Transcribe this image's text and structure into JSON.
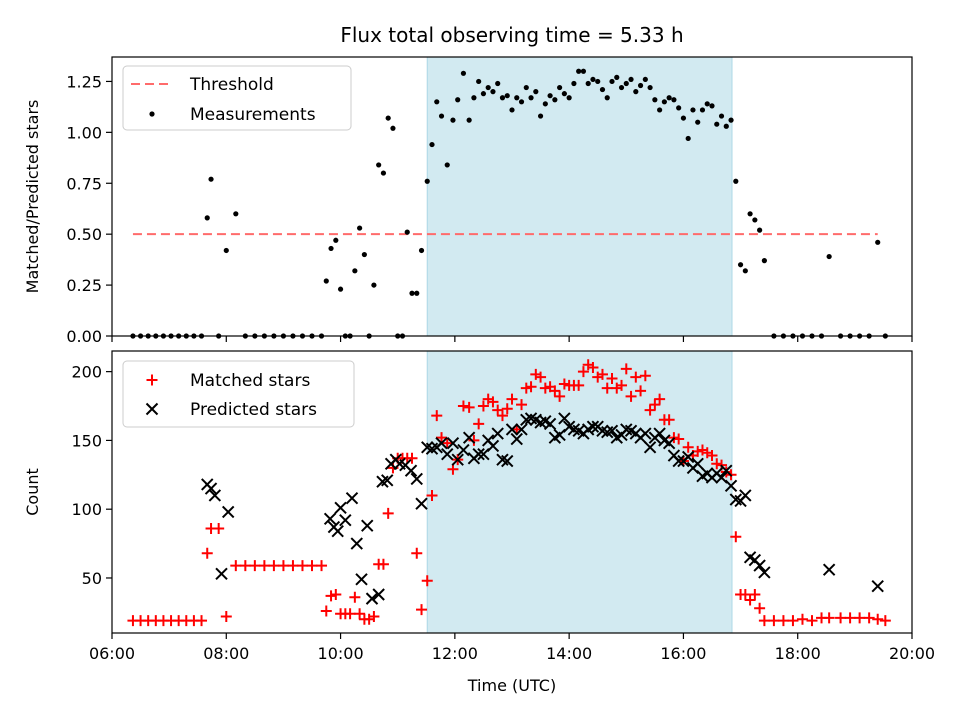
{
  "title": "Flux total observing time = 5.33 h",
  "colors": {
    "shade": "#add8e6",
    "threshold": "#ff6b6b",
    "measurements": "#000000",
    "matched": "#ff0000",
    "predicted": "#000000"
  },
  "chart_data": [
    {
      "type": "scatter",
      "title": "Flux total observing time = 5.33 h",
      "xlabel": "",
      "ylabel": "Matched/Predicted stars",
      "xlim": [
        "06:00",
        "20:00"
      ],
      "ylim": [
        0,
        1.37
      ],
      "yticks": [
        "0.00",
        "0.25",
        "0.50",
        "0.75",
        "1.00",
        "1.25"
      ],
      "grid": false,
      "legend_position": "upper-left",
      "shaded_interval": [
        "11:31",
        "16:51"
      ],
      "series": [
        {
          "name": "Threshold",
          "kind": "dashed-line",
          "x": [
            "06:22",
            "19:24"
          ],
          "y": [
            0.5,
            0.5
          ]
        },
        {
          "name": "Measurements",
          "kind": "dots",
          "x": [
            "06:22",
            "06:30",
            "06:38",
            "06:46",
            "06:54",
            "07:02",
            "07:10",
            "07:18",
            "07:26",
            "07:34",
            "07:40",
            "07:44",
            "07:52",
            "08:00",
            "08:10",
            "08:20",
            "08:30",
            "08:40",
            "08:50",
            "09:00",
            "09:10",
            "09:20",
            "09:30",
            "09:40",
            "09:45",
            "09:50",
            "09:55",
            "10:00",
            "10:05",
            "10:10",
            "10:15",
            "10:20",
            "10:25",
            "10:30",
            "10:35",
            "10:40",
            "10:45",
            "10:50",
            "10:55",
            "11:00",
            "11:05",
            "11:10",
            "11:15",
            "11:20",
            "11:25",
            "11:31",
            "11:36",
            "11:41",
            "11:46",
            "11:52",
            "11:58",
            "12:03",
            "12:09",
            "12:15",
            "12:20",
            "12:25",
            "12:30",
            "12:35",
            "12:40",
            "12:45",
            "12:50",
            "12:55",
            "13:00",
            "13:05",
            "13:10",
            "13:15",
            "13:20",
            "13:25",
            "13:30",
            "13:35",
            "13:40",
            "13:45",
            "13:50",
            "13:55",
            "14:00",
            "14:05",
            "14:10",
            "14:15",
            "14:20",
            "14:25",
            "14:30",
            "14:35",
            "14:40",
            "14:45",
            "14:50",
            "14:55",
            "15:00",
            "15:05",
            "15:10",
            "15:15",
            "15:20",
            "15:25",
            "15:30",
            "15:35",
            "15:40",
            "15:45",
            "15:50",
            "15:55",
            "16:00",
            "16:05",
            "16:10",
            "16:15",
            "16:20",
            "16:25",
            "16:30",
            "16:35",
            "16:40",
            "16:45",
            "16:50",
            "16:55",
            "17:00",
            "17:05",
            "17:10",
            "17:15",
            "17:20",
            "17:25",
            "17:35",
            "17:45",
            "17:55",
            "18:05",
            "18:15",
            "18:25",
            "18:33",
            "18:45",
            "18:55",
            "19:05",
            "19:15",
            "19:24",
            "19:32"
          ],
          "y": [
            0,
            0,
            0,
            0,
            0,
            0,
            0,
            0,
            0,
            0,
            0.58,
            0.77,
            0,
            0.42,
            0.6,
            0,
            0,
            0,
            0,
            0,
            0,
            0,
            0,
            0,
            0.27,
            0.43,
            0.47,
            0.23,
            0,
            0,
            0.32,
            0.53,
            0.4,
            0,
            0.25,
            0.84,
            0.8,
            1.07,
            1.02,
            0,
            0,
            0.51,
            0.21,
            0.21,
            0.42,
            0.76,
            0.94,
            1.15,
            1.08,
            0.84,
            1.06,
            1.16,
            1.29,
            1.06,
            1.17,
            1.25,
            1.19,
            1.22,
            1.2,
            1.24,
            1.17,
            1.18,
            1.11,
            1.17,
            1.15,
            1.22,
            1.17,
            1.2,
            1.08,
            1.14,
            1.18,
            1.16,
            1.22,
            1.19,
            1.17,
            1.24,
            1.3,
            1.3,
            1.24,
            1.26,
            1.25,
            1.21,
            1.17,
            1.25,
            1.27,
            1.22,
            1.24,
            1.26,
            1.2,
            1.23,
            1.26,
            1.22,
            1.16,
            1.11,
            1.15,
            1.17,
            1.16,
            1.12,
            1.07,
            0.97,
            1.11,
            1.05,
            1.11,
            1.14,
            1.13,
            1.04,
            1.08,
            1.03,
            1.06,
            0.76,
            0.35,
            0.32,
            0.6,
            0.57,
            0.52,
            0.37,
            0,
            0,
            0,
            0,
            0,
            0,
            0.39,
            0,
            0,
            0,
            0,
            0.46,
            0
          ]
        }
      ]
    },
    {
      "type": "scatter",
      "title": "",
      "xlabel": "Time (UTC)",
      "ylabel": "Count",
      "xlim": [
        "06:00",
        "20:00"
      ],
      "xticks": [
        "06:00",
        "08:00",
        "10:00",
        "12:00",
        "14:00",
        "16:00",
        "18:00",
        "20:00"
      ],
      "ylim": [
        10,
        215
      ],
      "yticks": [
        "50",
        "100",
        "150",
        "200"
      ],
      "grid": false,
      "legend_position": "upper-left",
      "shaded_interval": [
        "11:31",
        "16:51"
      ],
      "series": [
        {
          "name": "Matched stars",
          "marker": "plus",
          "x": [
            "06:22",
            "06:30",
            "06:38",
            "06:46",
            "06:54",
            "07:02",
            "07:10",
            "07:18",
            "07:26",
            "07:34",
            "07:40",
            "07:44",
            "07:52",
            "08:00",
            "08:10",
            "08:20",
            "08:30",
            "08:40",
            "08:50",
            "09:00",
            "09:10",
            "09:20",
            "09:30",
            "09:40",
            "09:45",
            "09:50",
            "09:55",
            "10:00",
            "10:05",
            "10:10",
            "10:15",
            "10:20",
            "10:25",
            "10:30",
            "10:35",
            "10:40",
            "10:45",
            "10:50",
            "10:55",
            "11:00",
            "11:05",
            "11:10",
            "11:15",
            "11:20",
            "11:25",
            "11:31",
            "11:36",
            "11:41",
            "11:46",
            "11:52",
            "11:58",
            "12:03",
            "12:09",
            "12:15",
            "12:20",
            "12:25",
            "12:30",
            "12:35",
            "12:40",
            "12:45",
            "12:50",
            "12:55",
            "13:00",
            "13:05",
            "13:10",
            "13:15",
            "13:20",
            "13:25",
            "13:30",
            "13:35",
            "13:40",
            "13:45",
            "13:50",
            "13:55",
            "14:00",
            "14:05",
            "14:10",
            "14:15",
            "14:20",
            "14:25",
            "14:30",
            "14:35",
            "14:40",
            "14:45",
            "14:50",
            "14:55",
            "15:00",
            "15:05",
            "15:10",
            "15:15",
            "15:20",
            "15:25",
            "15:30",
            "15:35",
            "15:40",
            "15:45",
            "15:50",
            "15:55",
            "16:00",
            "16:05",
            "16:10",
            "16:15",
            "16:20",
            "16:25",
            "16:30",
            "16:35",
            "16:40",
            "16:45",
            "16:50",
            "16:55",
            "17:00",
            "17:05",
            "17:10",
            "17:15",
            "17:20",
            "17:25",
            "17:35",
            "17:45",
            "17:55",
            "18:05",
            "18:15",
            "18:25",
            "18:33",
            "18:45",
            "18:55",
            "19:05",
            "19:15",
            "19:24",
            "19:32"
          ],
          "y": [
            19,
            19,
            19,
            19,
            19,
            19,
            19,
            19,
            19,
            19,
            68,
            86,
            86,
            22,
            59,
            59,
            59,
            59,
            59,
            59,
            59,
            59,
            59,
            59,
            26,
            37,
            38,
            24,
            24,
            24,
            36,
            24,
            20,
            20,
            22,
            60,
            60,
            97,
            130,
            137,
            137,
            137,
            137,
            68,
            27,
            48,
            110,
            168,
            152,
            148,
            129,
            136,
            175,
            174,
            150,
            162,
            175,
            180,
            178,
            172,
            168,
            173,
            180,
            158,
            176,
            188,
            189,
            198,
            196,
            188,
            189,
            186,
            182,
            191,
            190,
            190,
            190,
            200,
            205,
            203,
            196,
            198,
            188,
            195,
            188,
            190,
            202,
            182,
            196,
            186,
            197,
            172,
            176,
            180,
            165,
            165,
            152,
            151,
            135,
            145,
            139,
            142,
            143,
            141,
            139,
            133,
            132,
            127,
            125,
            80,
            38,
            38,
            34,
            38,
            28,
            19,
            19,
            19,
            19,
            20,
            19,
            21,
            21,
            21,
            21,
            21,
            21,
            20,
            19
          ]
        },
        {
          "name": "Predicted stars",
          "marker": "x",
          "x": [
            "07:40",
            "07:44",
            "07:48",
            "07:55",
            "08:02",
            "09:49",
            "09:53",
            "09:57",
            "10:00",
            "10:05",
            "10:12",
            "10:17",
            "10:22",
            "10:28",
            "10:33",
            "10:40",
            "10:44",
            "10:49",
            "10:53",
            "10:58",
            "11:02",
            "11:08",
            "11:14",
            "11:20",
            "11:25",
            "11:31",
            "11:36",
            "11:41",
            "11:46",
            "11:52",
            "11:58",
            "12:03",
            "12:09",
            "12:15",
            "12:20",
            "12:25",
            "12:30",
            "12:35",
            "12:40",
            "12:45",
            "12:50",
            "12:55",
            "13:00",
            "13:05",
            "13:10",
            "13:15",
            "13:20",
            "13:25",
            "13:30",
            "13:35",
            "13:40",
            "13:45",
            "13:50",
            "13:55",
            "14:00",
            "14:05",
            "14:10",
            "14:15",
            "14:20",
            "14:25",
            "14:30",
            "14:35",
            "14:40",
            "14:45",
            "14:50",
            "14:55",
            "15:00",
            "15:05",
            "15:10",
            "15:15",
            "15:20",
            "15:25",
            "15:30",
            "15:35",
            "15:40",
            "15:45",
            "15:50",
            "15:55",
            "16:00",
            "16:05",
            "16:10",
            "16:15",
            "16:20",
            "16:25",
            "16:30",
            "16:35",
            "16:40",
            "16:45",
            "16:50",
            "16:55",
            "17:00",
            "17:05",
            "17:10",
            "17:15",
            "17:20",
            "17:25",
            "18:33",
            "19:24"
          ],
          "y": [
            118,
            115,
            110,
            53,
            98,
            93,
            87,
            84,
            101,
            92,
            108,
            75,
            49,
            88,
            35,
            38,
            120,
            121,
            133,
            136,
            133,
            132,
            128,
            122,
            104,
            145,
            144,
            145,
            148,
            140,
            148,
            136,
            143,
            152,
            137,
            140,
            140,
            150,
            146,
            155,
            136,
            135,
            158,
            151,
            158,
            165,
            166,
            165,
            163,
            164,
            162,
            152,
            154,
            166,
            160,
            158,
            157,
            155,
            158,
            160,
            160,
            157,
            156,
            157,
            152,
            154,
            158,
            157,
            155,
            152,
            155,
            145,
            152,
            155,
            150,
            148,
            139,
            135,
            135,
            138,
            130,
            133,
            124,
            126,
            123,
            126,
            123,
            128,
            117,
            107,
            106,
            110,
            65,
            63,
            59,
            54,
            56,
            44
          ]
        }
      ]
    }
  ]
}
